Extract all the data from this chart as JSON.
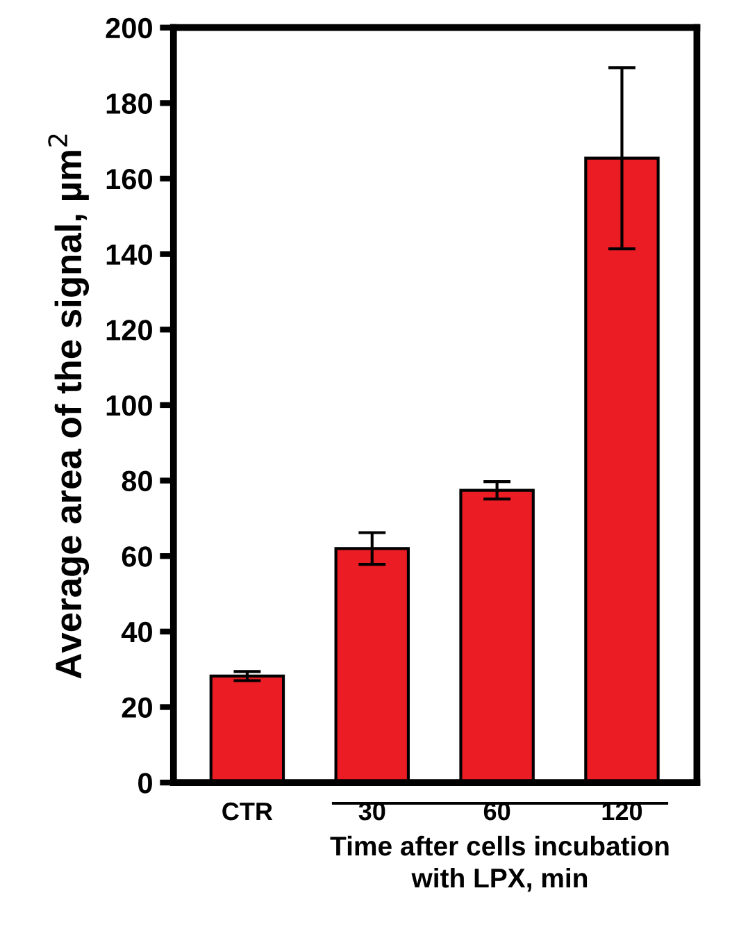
{
  "chart_data": {
    "type": "bar",
    "categories": [
      "CTR",
      "30",
      "60",
      "120"
    ],
    "values": [
      28.2,
      62.0,
      77.4,
      165.4
    ],
    "errors": [
      1.2,
      4.2,
      2.3,
      24
    ],
    "color": "#ec1c24",
    "ylabel": "Average area of the signal, µm$^{2}$",
    "xlabel": "Time after cells incubation\nwith LPX, min",
    "ylim": [
      0,
      200
    ],
    "yticks": [
      0,
      20,
      40,
      60,
      80,
      100,
      120,
      140,
      160,
      180,
      200
    ],
    "grid": false,
    "legend": false
  }
}
